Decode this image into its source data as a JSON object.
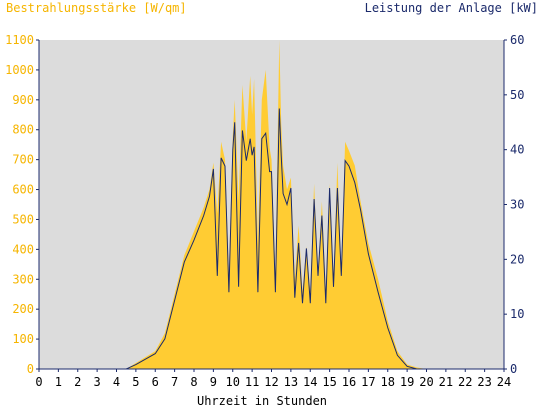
{
  "colors": {
    "background": "#ffffff",
    "plot_background": "#dcdcdc",
    "irradiance": "#ffcc33",
    "irradiance_text": "#f6b500",
    "power": "#1b2a6b",
    "axis": "#1b2a6b"
  },
  "chart_data": {
    "type": "area",
    "title_left": "Bestrahlungsstärke [W/qm]",
    "title_right": "Leistung der Anlage [kW]",
    "xlabel": "Uhrzeit in Stunden",
    "xlim": [
      0,
      24
    ],
    "ylim_left": [
      0,
      1100
    ],
    "ylim_right": [
      0,
      60
    ],
    "x_ticks": [
      "0",
      "1",
      "2",
      "3",
      "4",
      "5",
      "6",
      "7",
      "8",
      "9",
      "10",
      "11",
      "12",
      "13",
      "14",
      "15",
      "16",
      "17",
      "18",
      "19",
      "20",
      "21",
      "22",
      "23",
      "24"
    ],
    "y_ticks_left": [
      "0",
      "100",
      "200",
      "300",
      "400",
      "500",
      "600",
      "700",
      "800",
      "900",
      "1000",
      "1100"
    ],
    "y_ticks_right": [
      "0",
      "10",
      "20",
      "30",
      "40",
      "50",
      "60"
    ],
    "grid": false,
    "series": [
      {
        "axis": "left",
        "style": "area",
        "x": [
          0,
          4.5,
          5.0,
          5.5,
          6.0,
          6.5,
          7.0,
          7.5,
          8.0,
          8.5,
          8.8,
          9.0,
          9.2,
          9.4,
          9.6,
          9.8,
          10.0,
          10.1,
          10.3,
          10.5,
          10.7,
          10.9,
          11.0,
          11.1,
          11.3,
          11.5,
          11.7,
          11.9,
          12.0,
          12.2,
          12.4,
          12.5,
          12.6,
          12.8,
          13.0,
          13.2,
          13.4,
          13.6,
          13.8,
          14.0,
          14.2,
          14.4,
          14.6,
          14.8,
          15.0,
          15.2,
          15.4,
          15.6,
          15.8,
          16.0,
          16.3,
          16.6,
          17.0,
          17.5,
          18.0,
          18.5,
          19.0,
          19.5,
          20.0,
          20.3,
          24
        ],
        "y": [
          0,
          0,
          20,
          40,
          60,
          120,
          250,
          380,
          460,
          540,
          600,
          690,
          520,
          760,
          700,
          320,
          780,
          900,
          560,
          950,
          760,
          980,
          850,
          970,
          420,
          900,
          1000,
          740,
          700,
          320,
          1100,
          820,
          680,
          600,
          640,
          300,
          480,
          260,
          410,
          260,
          620,
          320,
          560,
          260,
          620,
          300,
          690,
          320,
          760,
          730,
          680,
          560,
          420,
          300,
          160,
          60,
          15,
          5,
          0,
          0,
          0
        ]
      },
      {
        "axis": "right",
        "style": "line",
        "x": [
          0,
          4.5,
          5.0,
          5.5,
          6.0,
          6.5,
          7.0,
          7.5,
          8.0,
          8.5,
          8.8,
          9.0,
          9.2,
          9.4,
          9.6,
          9.8,
          10.0,
          10.1,
          10.3,
          10.5,
          10.7,
          10.9,
          11.0,
          11.1,
          11.3,
          11.5,
          11.7,
          11.9,
          12.0,
          12.2,
          12.4,
          12.5,
          12.6,
          12.8,
          13.0,
          13.2,
          13.4,
          13.6,
          13.8,
          14.0,
          14.2,
          14.4,
          14.6,
          14.8,
          15.0,
          15.2,
          15.4,
          15.6,
          15.8,
          16.0,
          16.3,
          16.6,
          17.0,
          17.5,
          18.0,
          18.5,
          19.0,
          19.5,
          20.0,
          20.3,
          24
        ],
        "y": [
          0,
          0,
          0.8,
          1.8,
          2.8,
          5.5,
          12.5,
          19.5,
          23.5,
          28,
          31.5,
          36.5,
          17,
          38.5,
          37,
          14,
          40,
          45,
          15,
          43.5,
          38,
          42,
          39,
          40.5,
          14,
          42,
          43,
          36,
          36,
          14,
          47.5,
          39,
          32,
          30,
          33,
          13,
          23,
          12,
          22,
          12,
          31,
          17,
          28,
          12,
          33,
          15,
          33,
          17,
          38,
          37,
          34,
          29,
          21,
          14,
          7.5,
          2.5,
          0.5,
          0,
          0,
          0,
          0
        ]
      }
    ]
  }
}
